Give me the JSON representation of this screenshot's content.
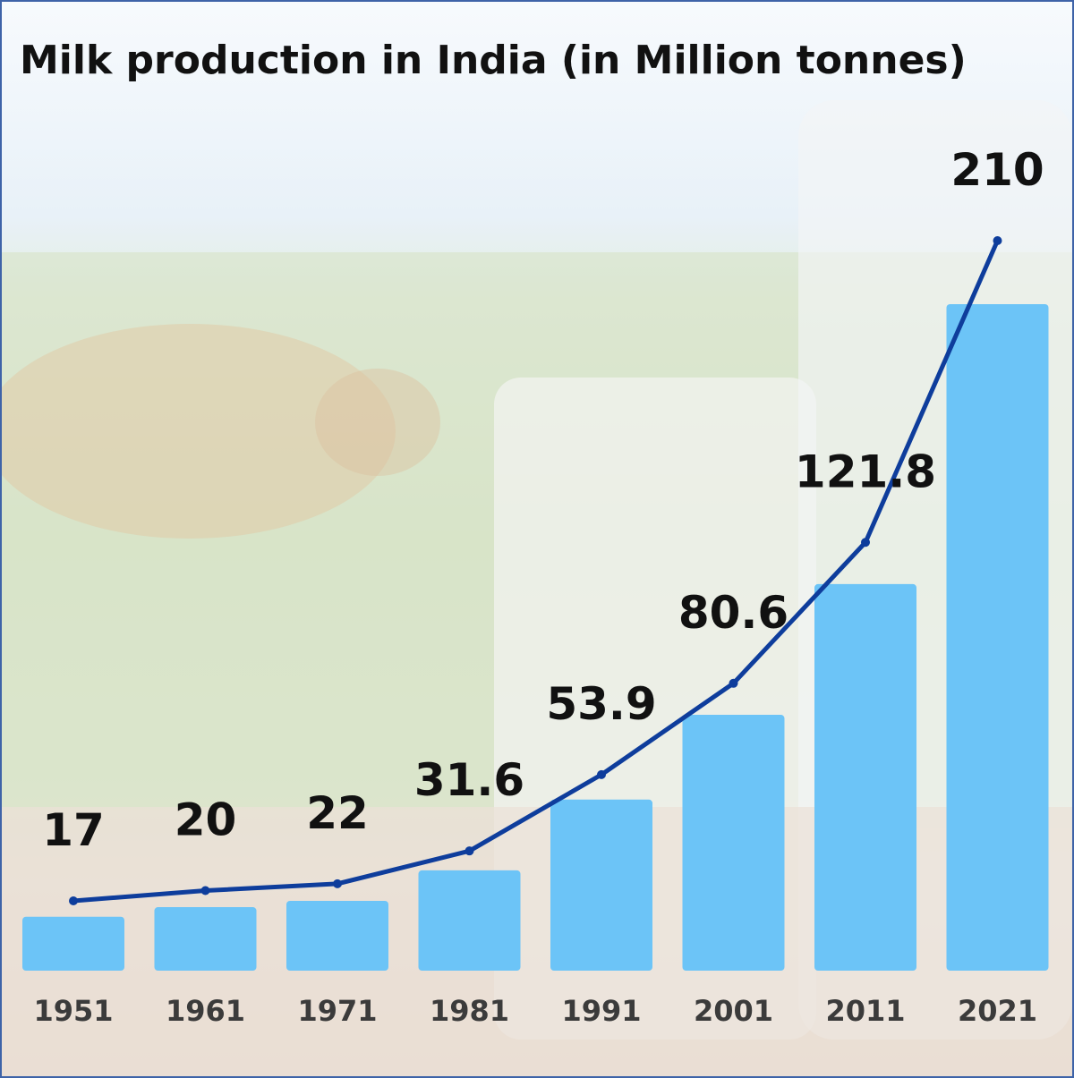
{
  "chart_data": {
    "type": "bar",
    "title": "Milk production in India (in Million tonnes)",
    "categories": [
      "1951",
      "1961",
      "1971",
      "1981",
      "1991",
      "2001",
      "2011",
      "2021"
    ],
    "values": [
      17,
      20,
      22,
      31.6,
      53.9,
      80.6,
      121.8,
      210
    ],
    "value_labels": [
      "17",
      "20",
      "22",
      "31.6",
      "53.9",
      "80.6",
      "121.8",
      "210"
    ],
    "overlay_line": true,
    "grid": false,
    "legend": "none",
    "colors": {
      "bar": "#6cc4f7",
      "line": "#0e3d9c",
      "title": "#111111",
      "value_label": "#111111",
      "tick_label": "#3b3b3b",
      "border": "#3e63a8"
    }
  }
}
